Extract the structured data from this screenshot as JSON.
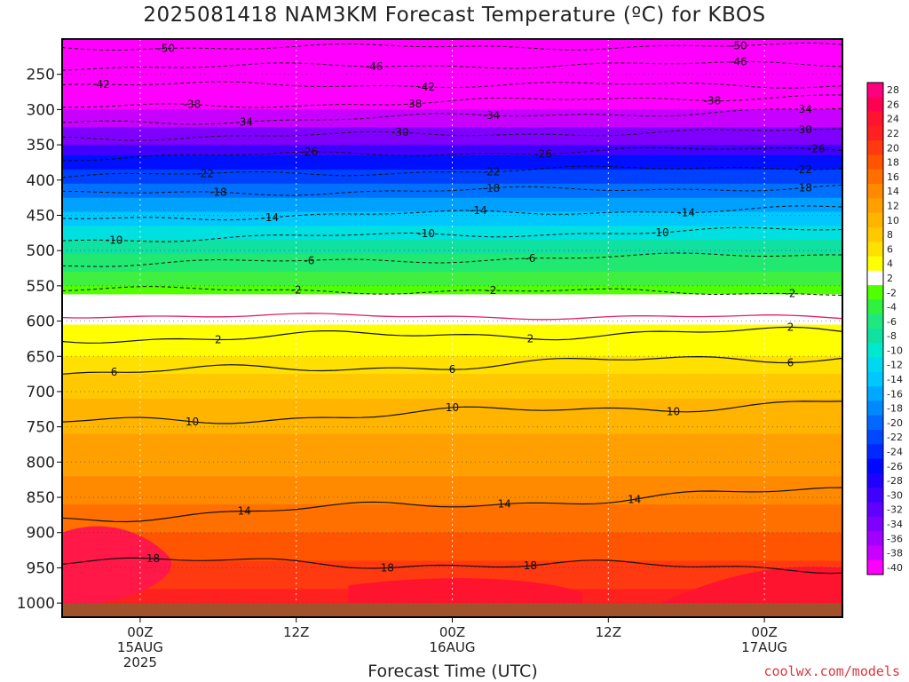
{
  "title": "2025081418 NAM3KM Forecast Temperature (ºC) for KBOS",
  "xlabel": "Forecast Time (UTC)",
  "credit": "coolwx.com/models",
  "chart_data": {
    "type": "heatmap",
    "title": "2025081418 NAM3KM Forecast Temperature (ºC) for KBOS",
    "xlabel": "Forecast Time (UTC)",
    "ylabel": "",
    "y_ticks": [
      250,
      300,
      350,
      400,
      450,
      500,
      550,
      600,
      650,
      700,
      750,
      800,
      850,
      900,
      950,
      1000
    ],
    "y_range": [
      200,
      1020
    ],
    "x_range_hours": [
      -6,
      54
    ],
    "x_ticks": [
      {
        "hour": 0,
        "lines": [
          "00Z",
          "15AUG",
          "2025"
        ]
      },
      {
        "hour": 12,
        "lines": [
          "12Z"
        ]
      },
      {
        "hour": 24,
        "lines": [
          "00Z",
          "16AUG"
        ]
      },
      {
        "hour": 36,
        "lines": [
          "12Z"
        ]
      },
      {
        "hour": 48,
        "lines": [
          "00Z",
          "17AUG"
        ]
      }
    ],
    "colorbar": {
      "labels": [
        "28",
        "26",
        "24",
        "22",
        "20",
        "18",
        "16",
        "14",
        "12",
        "10",
        "8",
        "6",
        "4",
        "2",
        "-2",
        "-4",
        "-6",
        "-8",
        "-10",
        "-12",
        "-14",
        "-16",
        "-18",
        "-20",
        "-22",
        "-24",
        "-26",
        "-28",
        "-30",
        "-32",
        "-34",
        "-36",
        "-38",
        "-40"
      ],
      "colors": [
        "#ff0080",
        "#ff0050",
        "#ff1430",
        "#ff2020",
        "#ff3a10",
        "#ff5500",
        "#ff6f00",
        "#ff8a00",
        "#ffa000",
        "#ffb400",
        "#ffc800",
        "#ffe000",
        "#ffff00",
        "#ffffff",
        "#50ff00",
        "#30f040",
        "#20e880",
        "#10e0a0",
        "#00e8d0",
        "#00d8f0",
        "#00c8ff",
        "#00a8ff",
        "#0088ff",
        "#0068ff",
        "#0048ff",
        "#0028ff",
        "#0008ff",
        "#2000ff",
        "#4000ff",
        "#6000ff",
        "#8000ff",
        "#a000ff",
        "#c800ff",
        "#ff00ff"
      ]
    },
    "isotherms_below_freezing": [
      {
        "value": 50,
        "pressure_start": 212,
        "pressure_end": 210,
        "labels_hours": [
          2,
          46
        ]
      },
      {
        "value": 46,
        "pressure_start": 240,
        "pressure_end": 235,
        "labels_hours": [
          18,
          46
        ]
      },
      {
        "value": 42,
        "pressure_start": 265,
        "pressure_end": 265,
        "labels_hours": [
          -3,
          22
        ]
      },
      {
        "value": 38,
        "pressure_start": 298,
        "pressure_end": 280,
        "labels_hours": [
          4,
          21,
          44
        ]
      },
      {
        "value": 34,
        "pressure_start": 320,
        "pressure_end": 300,
        "labels_hours": [
          8,
          27,
          51
        ]
      },
      {
        "value": 30,
        "pressure_start": 340,
        "pressure_end": 330,
        "labels_hours": [
          20,
          51
        ]
      },
      {
        "value": 26,
        "pressure_start": 368,
        "pressure_end": 355,
        "labels_hours": [
          13,
          31,
          52
        ]
      },
      {
        "value": 22,
        "pressure_start": 395,
        "pressure_end": 380,
        "labels_hours": [
          5,
          27,
          51
        ]
      },
      {
        "value": 18,
        "pressure_start": 420,
        "pressure_end": 410,
        "labels_hours": [
          6,
          27,
          51
        ]
      },
      {
        "value": 14,
        "pressure_start": 455,
        "pressure_end": 440,
        "labels_hours": [
          10,
          26,
          42
        ]
      },
      {
        "value": 10,
        "pressure_start": 485,
        "pressure_end": 470,
        "labels_hours": [
          -2,
          22,
          40
        ]
      },
      {
        "value": 6,
        "pressure_start": 520,
        "pressure_end": 505,
        "labels_hours": [
          13,
          30
        ]
      },
      {
        "value": 2,
        "pressure_start": 555,
        "pressure_end": 560,
        "labels_hours": [
          12,
          27,
          50
        ]
      }
    ],
    "freezing_level": {
      "value": 0,
      "pressure_start": 592,
      "pressure_end": 595
    },
    "isotherms_above_freezing": [
      {
        "value": 2,
        "pressure_start": 625,
        "pressure_end": 615,
        "labels_hours": [
          6,
          30,
          50
        ]
      },
      {
        "value": 6,
        "pressure_start": 675,
        "pressure_end": 650,
        "labels_hours": [
          -2,
          24,
          50
        ]
      },
      {
        "value": 10,
        "pressure_start": 745,
        "pressure_end": 715,
        "labels_hours": [
          4,
          24,
          41
        ]
      },
      {
        "value": 14,
        "pressure_start": 880,
        "pressure_end": 840,
        "labels_hours": [
          8,
          28,
          38
        ]
      },
      {
        "value": 18,
        "pressure_start": 940,
        "pressure_end": 950,
        "labels_hours": [
          1,
          19,
          30
        ]
      }
    ]
  }
}
